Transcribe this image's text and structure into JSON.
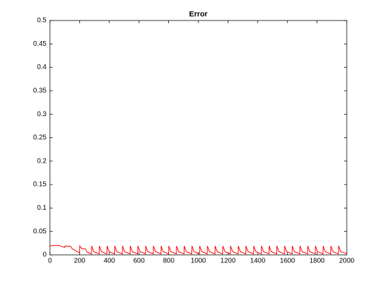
{
  "chart_data": {
    "type": "line",
    "title": "Error",
    "x": [
      0,
      30,
      60,
      90,
      100,
      101,
      140,
      150,
      190,
      200,
      201,
      215,
      240,
      250,
      280,
      281,
      295,
      332,
      333,
      347,
      384,
      385,
      399,
      436,
      437,
      451,
      488,
      489,
      503,
      540,
      541,
      555,
      592,
      593,
      607,
      644,
      645,
      659,
      696,
      697,
      711,
      748,
      749,
      763,
      800,
      801,
      815,
      852,
      853,
      867,
      904,
      905,
      919,
      956,
      957,
      971,
      1008,
      1009,
      1023,
      1060,
      1061,
      1075,
      1112,
      1113,
      1127,
      1164,
      1165,
      1179,
      1216,
      1217,
      1231,
      1268,
      1269,
      1283,
      1320,
      1321,
      1335,
      1372,
      1373,
      1387,
      1424,
      1425,
      1439,
      1476,
      1477,
      1491,
      1528,
      1529,
      1543,
      1580,
      1581,
      1595,
      1632,
      1633,
      1647,
      1684,
      1685,
      1699,
      1736,
      1737,
      1751,
      1788,
      1789,
      1803,
      1840,
      1841,
      1855,
      1892,
      1893,
      1907,
      1944,
      1945,
      1959,
      2000
    ],
    "series": [
      {
        "color": "#ff0000",
        "values": [
          0.019,
          0.02,
          0.02,
          0.017,
          0.016,
          0.019,
          0.018,
          0.013,
          0.006,
          0.005,
          0.019,
          0.013,
          0.013,
          0.006,
          0.002,
          0.019,
          0.007,
          0.002,
          0.019,
          0.007,
          0.002,
          0.019,
          0.007,
          0.002,
          0.019,
          0.007,
          0.002,
          0.019,
          0.007,
          0.002,
          0.019,
          0.007,
          0.002,
          0.019,
          0.007,
          0.002,
          0.019,
          0.007,
          0.002,
          0.019,
          0.007,
          0.002,
          0.019,
          0.007,
          0.002,
          0.019,
          0.007,
          0.002,
          0.019,
          0.007,
          0.002,
          0.019,
          0.007,
          0.002,
          0.019,
          0.007,
          0.002,
          0.019,
          0.007,
          0.002,
          0.019,
          0.007,
          0.002,
          0.019,
          0.007,
          0.002,
          0.019,
          0.007,
          0.002,
          0.019,
          0.007,
          0.002,
          0.019,
          0.007,
          0.002,
          0.019,
          0.007,
          0.002,
          0.019,
          0.007,
          0.002,
          0.019,
          0.007,
          0.002,
          0.019,
          0.007,
          0.002,
          0.019,
          0.007,
          0.002,
          0.019,
          0.007,
          0.002,
          0.019,
          0.007,
          0.002,
          0.019,
          0.007,
          0.002,
          0.019,
          0.007,
          0.002,
          0.019,
          0.007,
          0.002,
          0.019,
          0.007,
          0.002,
          0.019,
          0.007,
          0.002,
          0.019,
          0.007,
          0.003
        ]
      }
    ],
    "xlim": [
      0,
      2000
    ],
    "xticks": [
      0,
      200,
      400,
      600,
      800,
      1000,
      1200,
      1400,
      1600,
      1800,
      2000
    ],
    "ylim": [
      0,
      0.5
    ],
    "yticks": [
      0,
      0.05,
      0.1,
      0.15,
      0.2,
      0.25,
      0.3,
      0.35,
      0.4,
      0.45,
      0.5
    ]
  }
}
